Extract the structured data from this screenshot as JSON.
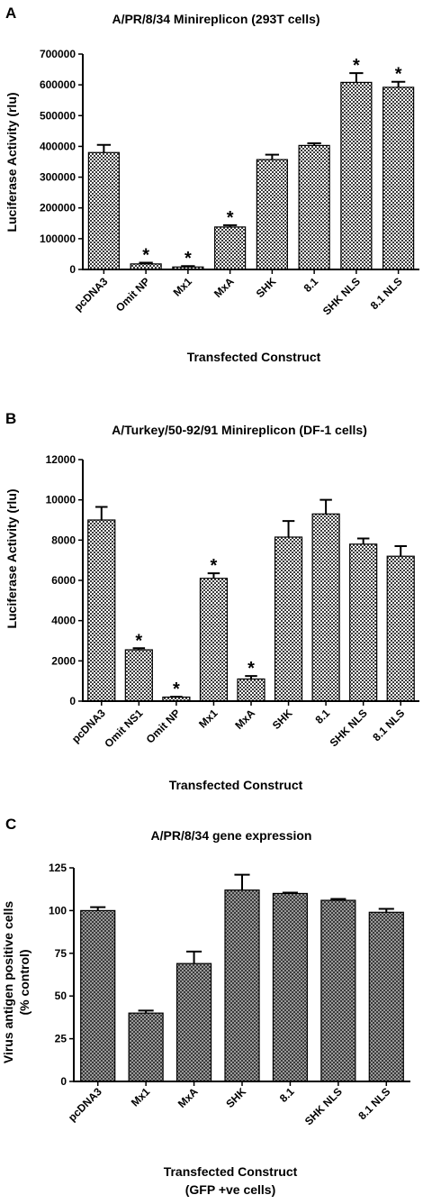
{
  "chart_data": [
    {
      "panel": "A",
      "type": "bar",
      "title": "A/PR/8/34 Minireplicon (293T cells)",
      "ylabel": "Luciferase Activity (rlu)",
      "xlabel": "Transfected Construct",
      "categories": [
        "pcDNA3",
        "Omit NP",
        "Mx1",
        "MxA",
        "SHK",
        "8.1",
        "SHK NLS",
        "8.1 NLS"
      ],
      "values": [
        380000,
        18000,
        8000,
        138000,
        357000,
        403000,
        608000,
        592000
      ],
      "errors": [
        25000,
        4000,
        3000,
        6000,
        16000,
        7000,
        30000,
        18000
      ],
      "significant": [
        false,
        true,
        true,
        true,
        false,
        false,
        true,
        true
      ],
      "ylim": [
        0,
        700000
      ],
      "yticks": [
        0,
        100000,
        200000,
        300000,
        400000,
        500000,
        600000,
        700000
      ],
      "fill": "checker-light"
    },
    {
      "panel": "B",
      "type": "bar",
      "title": "A/Turkey/50-92/91 Minireplicon (DF-1 cells)",
      "ylabel": "Luciferase Activity (rlu)",
      "xlabel": "Transfected Construct",
      "categories": [
        "pcDNA3",
        "Omit NS1",
        "Omit NP",
        "Mx1",
        "MxA",
        "SHK",
        "8.1",
        "SHK NLS",
        "8.1 NLS"
      ],
      "values": [
        9000,
        2550,
        200,
        6100,
        1100,
        8150,
        9300,
        7800,
        7200
      ],
      "errors": [
        650,
        80,
        20,
        250,
        150,
        800,
        700,
        280,
        500
      ],
      "significant": [
        false,
        true,
        true,
        true,
        true,
        false,
        false,
        false,
        false
      ],
      "ylim": [
        0,
        12000
      ],
      "yticks": [
        0,
        2000,
        4000,
        6000,
        8000,
        10000,
        12000
      ],
      "fill": "checker-light"
    },
    {
      "panel": "C",
      "type": "bar",
      "title": "A/PR/8/34 gene expression",
      "ylabel": [
        "Virus antigen positive cells",
        "(% control)"
      ],
      "xlabel": [
        "Transfected Construct",
        "(GFP +ve cells)"
      ],
      "categories": [
        "pcDNA3",
        "Mx1",
        "MxA",
        "SHK",
        "8.1",
        "SHK NLS",
        "8.1 NLS"
      ],
      "values": [
        100,
        40,
        69,
        112,
        110,
        106,
        99
      ],
      "errors": [
        2,
        1.5,
        7,
        9,
        0.5,
        0.8,
        2
      ],
      "significant": [
        false,
        false,
        false,
        false,
        false,
        false,
        false
      ],
      "ylim": [
        0,
        125
      ],
      "yticks": [
        0,
        25,
        50,
        75,
        100,
        125
      ],
      "fill": "checker-dark"
    }
  ],
  "star_label": "*"
}
